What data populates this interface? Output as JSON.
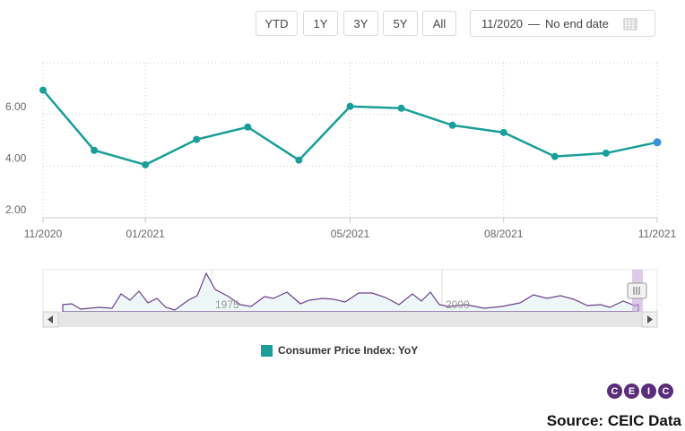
{
  "range_buttons": [
    "YTD",
    "1Y",
    "3Y",
    "5Y",
    "All"
  ],
  "date_range": {
    "from": "11/2020",
    "separator": "—",
    "to": "No end date"
  },
  "navigator": {
    "labels": [
      "1975",
      "2000"
    ]
  },
  "logo": [
    "C",
    "E",
    "I",
    "C"
  ],
  "source": "Source: CEIC Data",
  "chart_data": {
    "type": "line",
    "categories": [
      "11/2020",
      null,
      "01/2021",
      null,
      null,
      null,
      "05/2021",
      null,
      null,
      "08/2021",
      null,
      null,
      "11/2021"
    ],
    "series": [
      {
        "name": "Consumer Price Index: YoY",
        "color": "#1a9e99",
        "values": [
          6.94,
          4.61,
          4.05,
          5.03,
          5.51,
          4.23,
          6.31,
          6.24,
          5.58,
          5.3,
          4.37,
          4.5,
          4.92
        ]
      }
    ],
    "ylim": [
      2,
      8
    ],
    "yticks": [
      {
        "value": 2,
        "label": "2.00"
      },
      {
        "value": 4,
        "label": "4.00"
      },
      {
        "value": 6,
        "label": "6.00"
      },
      {
        "value": 8,
        "label": ""
      }
    ],
    "grid": true
  }
}
